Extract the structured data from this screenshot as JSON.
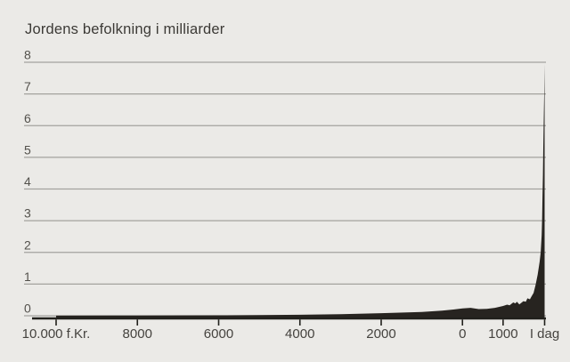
{
  "chart_data": {
    "type": "area",
    "title": "Jordens befolkning i milliarder",
    "xlabel": "",
    "ylabel": "",
    "grid": true,
    "legend": false,
    "x_axis": {
      "unit": "year",
      "range": [
        -10000,
        2022
      ],
      "ticks": [
        {
          "year": -10000,
          "label": "10.000 f.Kr."
        },
        {
          "year": -8000,
          "label": "8000"
        },
        {
          "year": -6000,
          "label": "6000"
        },
        {
          "year": -4000,
          "label": "4000"
        },
        {
          "year": -2000,
          "label": "2000"
        },
        {
          "year": 0,
          "label": "0"
        },
        {
          "year": 1000,
          "label": "1000"
        },
        {
          "year": 2022,
          "label": "I dag"
        }
      ]
    },
    "y_axis": {
      "range": [
        0,
        8
      ],
      "ticks": [
        0,
        1,
        2,
        3,
        4,
        5,
        6,
        7,
        8
      ]
    },
    "series": [
      {
        "name": "Jordens befolkning i milliarder",
        "points": [
          [
            -10000,
            0.004
          ],
          [
            -8000,
            0.008
          ],
          [
            -6000,
            0.015
          ],
          [
            -5000,
            0.02
          ],
          [
            -4000,
            0.03
          ],
          [
            -3000,
            0.05
          ],
          [
            -2000,
            0.08
          ],
          [
            -1000,
            0.12
          ],
          [
            -500,
            0.16
          ],
          [
            -200,
            0.2
          ],
          [
            1,
            0.23
          ],
          [
            200,
            0.25
          ],
          [
            400,
            0.21
          ],
          [
            600,
            0.22
          ],
          [
            800,
            0.25
          ],
          [
            1000,
            0.31
          ],
          [
            1100,
            0.35
          ],
          [
            1160,
            0.33
          ],
          [
            1250,
            0.42
          ],
          [
            1300,
            0.39
          ],
          [
            1340,
            0.44
          ],
          [
            1400,
            0.36
          ],
          [
            1500,
            0.46
          ],
          [
            1560,
            0.44
          ],
          [
            1600,
            0.55
          ],
          [
            1660,
            0.52
          ],
          [
            1700,
            0.61
          ],
          [
            1750,
            0.72
          ],
          [
            1800,
            0.98
          ],
          [
            1850,
            1.3
          ],
          [
            1900,
            1.7
          ],
          [
            1925,
            2.0
          ],
          [
            1950,
            2.55
          ],
          [
            1960,
            3.05
          ],
          [
            1970,
            3.75
          ],
          [
            1980,
            4.45
          ],
          [
            1990,
            5.32
          ],
          [
            2000,
            6.15
          ],
          [
            2010,
            6.96
          ],
          [
            2022,
            7.95
          ]
        ]
      }
    ],
    "colors": {
      "background": "#ebeae7",
      "area": "#272420",
      "axis": "#21201c",
      "gridline": "#a3a29e",
      "title_text": "#3c3a36",
      "y_tick_text": "#53514c",
      "x_tick_text": "#45433f"
    }
  }
}
